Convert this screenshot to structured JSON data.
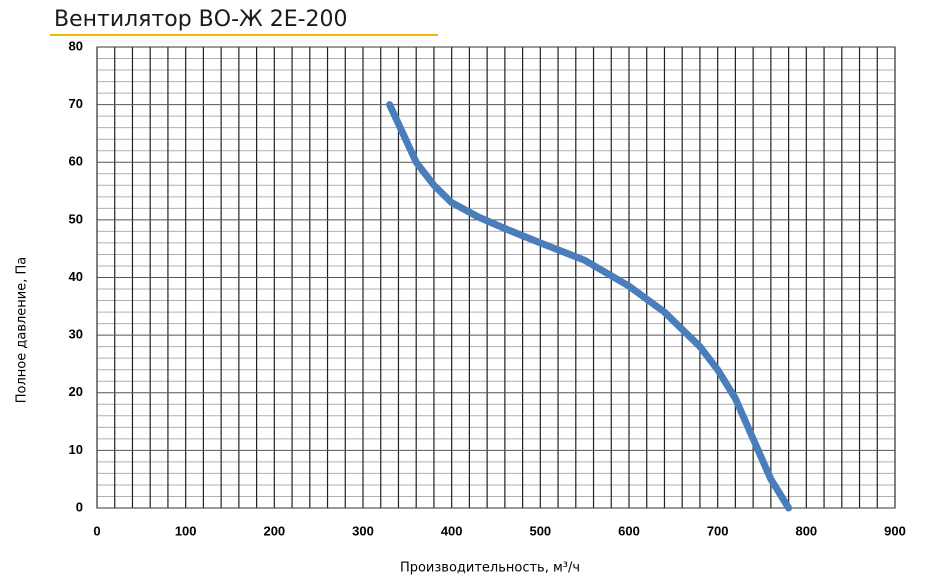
{
  "chart_data": {
    "type": "line",
    "title": "Вентилятор ВО-Ж 2Е-200",
    "x_label": "Производительность, м³/ч",
    "y_label": "Полное давление, Па",
    "series": [
      {
        "name": "ВО-Ж 2Е-200",
        "color": "#4a7ebb",
        "x": [
          330,
          345,
          360,
          380,
          400,
          430,
          460,
          500,
          550,
          600,
          640,
          680,
          700,
          720,
          740,
          760,
          780
        ],
        "values": [
          70,
          65,
          60,
          56,
          53,
          50.5,
          48.5,
          46,
          43,
          38.5,
          34,
          28,
          24,
          19,
          12,
          5,
          0
        ]
      }
    ],
    "xlim": [
      0,
      900
    ],
    "xticks": [
      0,
      100,
      200,
      300,
      400,
      500,
      600,
      700,
      800,
      900
    ],
    "ylim": [
      0,
      80
    ],
    "yticks": [
      0,
      10,
      20,
      30,
      40,
      50,
      60,
      70,
      80
    ],
    "grid": true
  }
}
